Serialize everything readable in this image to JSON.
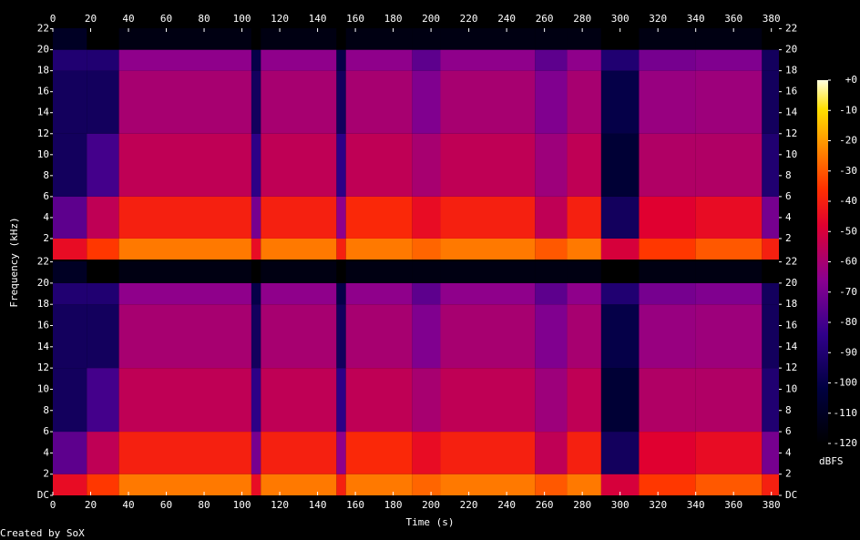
{
  "chart_data": {
    "type": "spectrogram",
    "x_label": "Time (s)",
    "y_label": "Frequency (kHz)",
    "colorbar_label": "dBFS",
    "credit": "Created by SoX",
    "xlim": [
      0,
      384
    ],
    "xticks": [
      0,
      20,
      40,
      60,
      80,
      100,
      120,
      140,
      160,
      180,
      200,
      220,
      240,
      260,
      280,
      300,
      320,
      340,
      360,
      380
    ],
    "ylim": [
      0,
      22.05
    ],
    "yticks": [
      {
        "value": 0,
        "label": "DC"
      },
      2,
      4,
      6,
      8,
      10,
      12,
      14,
      16,
      18,
      20,
      22
    ],
    "zlim": [
      -120,
      0
    ],
    "zticks": [
      {
        "value": 0,
        "label": "+0"
      },
      -10,
      -20,
      -30,
      -40,
      -50,
      -60,
      -70,
      -80,
      -90,
      -100,
      -110,
      -120
    ],
    "time_edges": [
      0,
      18,
      35,
      105,
      110,
      150,
      155,
      190,
      205,
      255,
      272,
      290,
      310,
      340,
      375,
      384
    ],
    "freq_edges": [
      0,
      2,
      6,
      12,
      18,
      20,
      22.05
    ],
    "channels": [
      {
        "levels": [
          [
            -45,
            -75,
            -95,
            -95,
            -90,
            -110
          ],
          [
            -35,
            -55,
            -80,
            -95,
            -90,
            -120
          ],
          [
            -25,
            -40,
            -55,
            -60,
            -65,
            -115
          ],
          [
            -45,
            -70,
            -85,
            -95,
            -100,
            -120
          ],
          [
            -25,
            -40,
            -55,
            -60,
            -65,
            -115
          ],
          [
            -40,
            -65,
            -85,
            -95,
            -100,
            -120
          ],
          [
            -25,
            -38,
            -55,
            -60,
            -65,
            -115
          ],
          [
            -28,
            -45,
            -60,
            -68,
            -75,
            -115
          ],
          [
            -25,
            -40,
            -55,
            -60,
            -65,
            -115
          ],
          [
            -30,
            -55,
            -62,
            -68,
            -75,
            -115
          ],
          [
            -25,
            -40,
            -55,
            -60,
            -65,
            -115
          ],
          [
            -50,
            -95,
            -105,
            -100,
            -90,
            -120
          ],
          [
            -35,
            -48,
            -58,
            -63,
            -70,
            -115
          ],
          [
            -30,
            -45,
            -58,
            -62,
            -68,
            -115
          ],
          [
            -40,
            -70,
            -90,
            -95,
            -95,
            -120
          ]
        ]
      },
      {
        "levels": [
          [
            -45,
            -75,
            -95,
            -95,
            -90,
            -110
          ],
          [
            -35,
            -55,
            -80,
            -95,
            -90,
            -120
          ],
          [
            -25,
            -40,
            -55,
            -60,
            -65,
            -115
          ],
          [
            -45,
            -70,
            -85,
            -95,
            -100,
            -120
          ],
          [
            -25,
            -40,
            -55,
            -60,
            -65,
            -115
          ],
          [
            -40,
            -65,
            -85,
            -95,
            -100,
            -120
          ],
          [
            -25,
            -38,
            -55,
            -60,
            -65,
            -115
          ],
          [
            -28,
            -45,
            -60,
            -68,
            -75,
            -115
          ],
          [
            -25,
            -40,
            -55,
            -60,
            -65,
            -115
          ],
          [
            -30,
            -55,
            -62,
            -68,
            -75,
            -115
          ],
          [
            -25,
            -40,
            -55,
            -60,
            -65,
            -115
          ],
          [
            -50,
            -95,
            -105,
            -100,
            -90,
            -120
          ],
          [
            -35,
            -48,
            -58,
            -63,
            -70,
            -115
          ],
          [
            -30,
            -45,
            -58,
            -62,
            -68,
            -115
          ],
          [
            -40,
            -70,
            -90,
            -95,
            -95,
            -120
          ]
        ]
      }
    ]
  }
}
